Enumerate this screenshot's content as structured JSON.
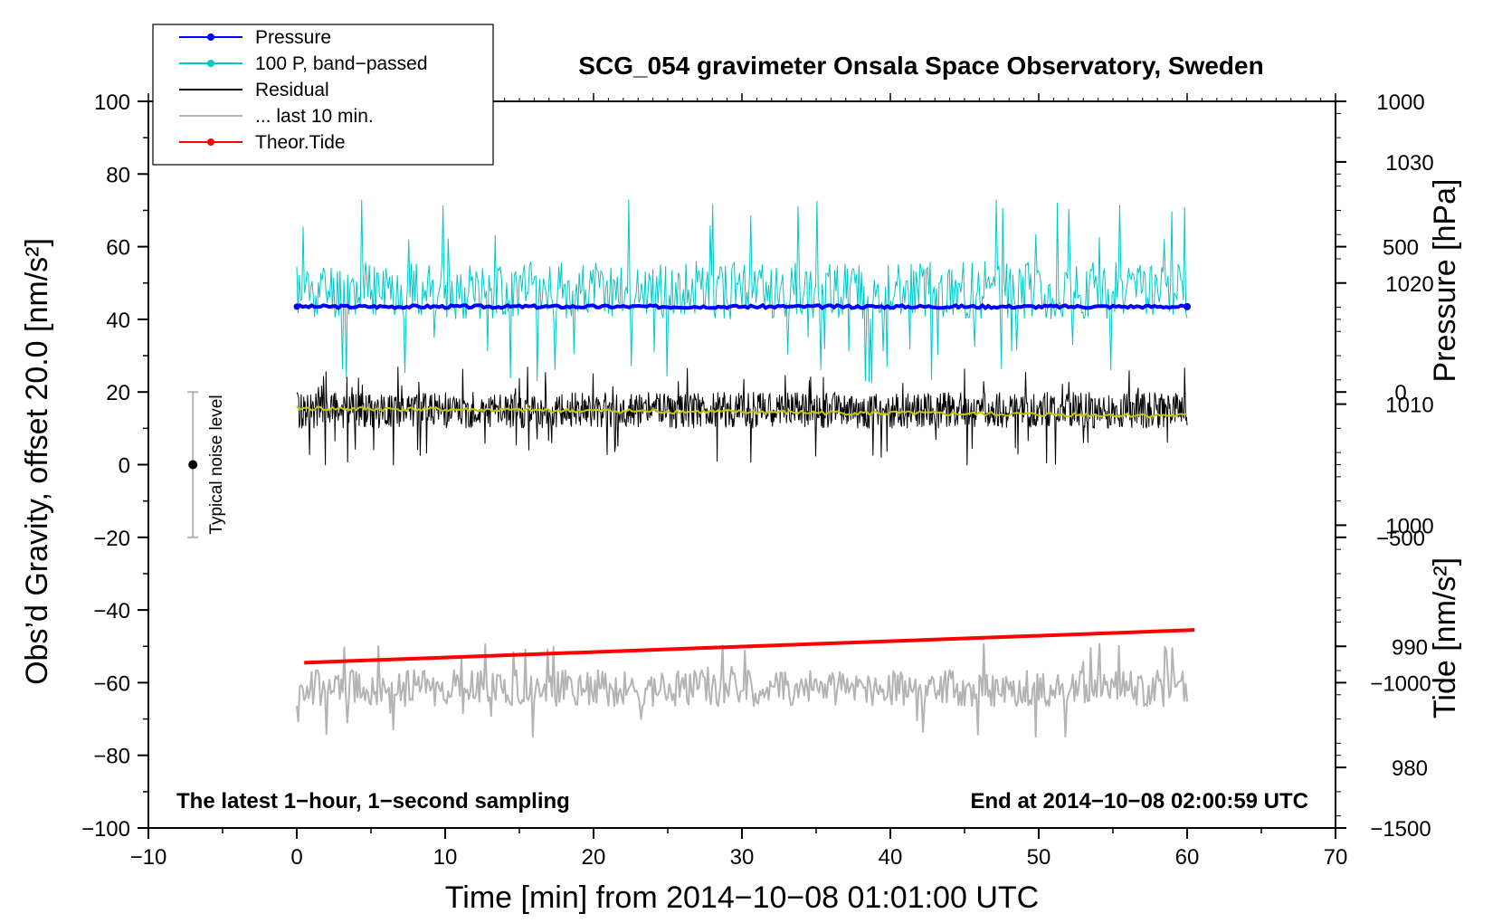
{
  "chart_data": {
    "type": "line",
    "title": "SCG_054 gravimeter Onsala Space Observatory, Sweden",
    "xlabel": "Time [min] from 2014−10−08 01:01:00 UTC",
    "ylabel_left": "Obs’d Gravity, offset 20.0 [nm/s²]",
    "ylabel_pressure": "Pressure [hPa]",
    "ylabel_tide": "Tide [nm/s²]",
    "xlim": [
      -10,
      70
    ],
    "ylim": [
      -100,
      100
    ],
    "pressure_lim": [
      975,
      1035
    ],
    "tide_lim": [
      -1500,
      1000
    ],
    "x_ticks": [
      "−10",
      "0",
      "10",
      "20",
      "30",
      "40",
      "50",
      "60",
      "70"
    ],
    "y_ticks": [
      "−100",
      "−80",
      "−60",
      "−40",
      "−20",
      "0",
      "20",
      "40",
      "60",
      "80",
      "100"
    ],
    "pressure_ticks": [
      "980",
      "990",
      "1000",
      "1010",
      "1020",
      "1030"
    ],
    "tide_ticks": [
      "−1500",
      "−1000",
      "−500",
      "0",
      "500",
      "1000"
    ],
    "note_left": "The latest 1−hour, 1−second sampling",
    "note_right": "End at 2014−10−08 02:00:59 UTC",
    "noise_label": "Typical noise level",
    "noise_bar": {
      "x": -7,
      "center": 0,
      "low": -20,
      "high": 20
    },
    "legend": [
      {
        "label": "Pressure",
        "color": "#0000ff",
        "marker": true
      },
      {
        "label": "100 P, band−passed",
        "color": "#00c8c8",
        "marker": true
      },
      {
        "label": "Residual",
        "color": "#000000",
        "marker": false
      },
      {
        "label": "... last 10 min.",
        "color": "#b4b4b4",
        "marker": false
      },
      {
        "label": "Theor.Tide",
        "color": "#ff0000",
        "marker": true
      }
    ],
    "series": [
      {
        "name": "Pressure",
        "color": "#0000ff",
        "x_range": [
          0,
          60
        ],
        "level": 43.5,
        "amplitude": 0.4,
        "seed": 3
      },
      {
        "name": "100 P, band−passed",
        "color": "#00c8c8",
        "x_range": [
          0,
          60
        ],
        "level": 48,
        "amplitude": 8,
        "spike_max": 75,
        "spike_min": 22,
        "seed": 11
      },
      {
        "name": "Residual",
        "color": "#000000",
        "x_range": [
          0,
          60
        ],
        "level": 15,
        "amplitude": 5,
        "spike_max": 27,
        "spike_min": -0.5,
        "seed": 29
      },
      {
        "name": "Residual smoothed",
        "color": "#c8c800",
        "x_range": [
          0,
          60
        ],
        "start": 15.5,
        "end": 13.5,
        "amplitude": 0.6,
        "seed": 41
      },
      {
        "name": "... last 10 min.",
        "color": "#b4b4b4",
        "x_range": [
          0,
          60
        ],
        "level": -61.5,
        "amplitude": 5,
        "spike_max": -49,
        "spike_min": -75,
        "seed": 53
      },
      {
        "name": "Theor.Tide",
        "color": "#ff0000",
        "x_range": [
          0.5,
          60.5
        ],
        "y_start": -54.5,
        "y_end": -45.5
      }
    ]
  }
}
